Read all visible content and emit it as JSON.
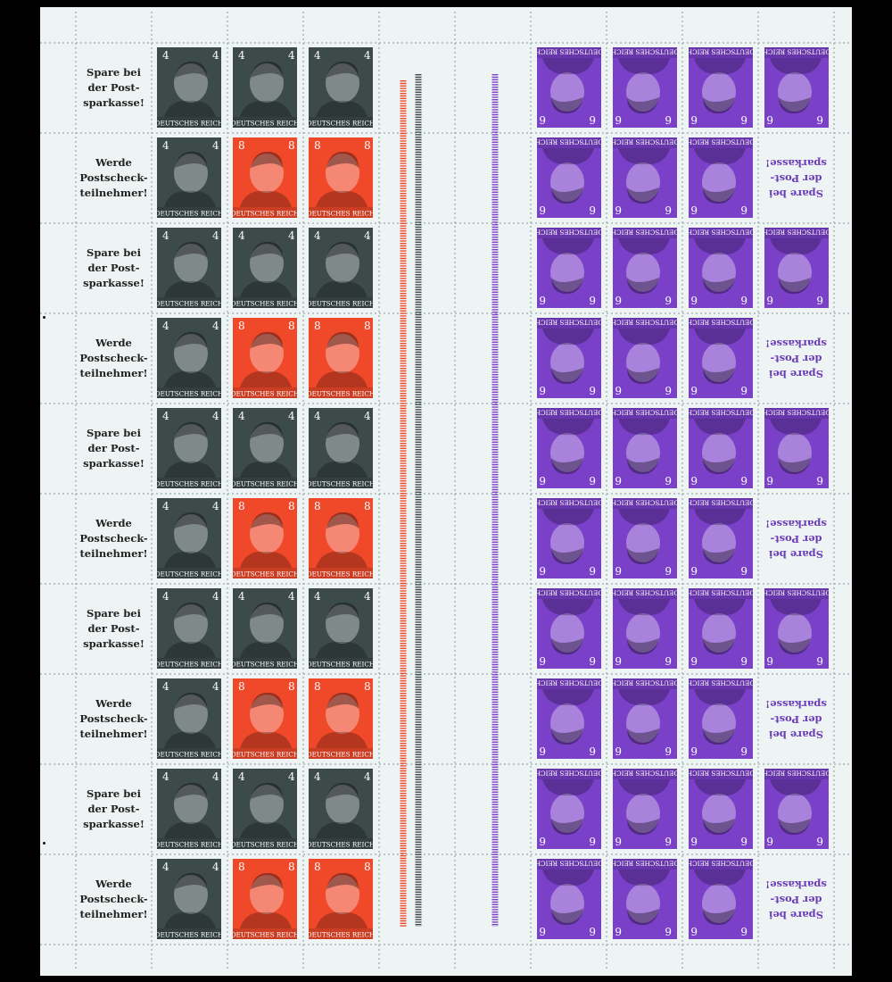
{
  "sheet": {
    "rows": [
      {
        "left_label": [
          "Spare bei",
          "der Post-",
          "sparkasse!"
        ],
        "left_values": [
          "4",
          "4",
          "4"
        ],
        "right_label": null
      },
      {
        "left_label": [
          "Werde",
          "Postscheck-",
          "teilnehmer!"
        ],
        "left_values": [
          "4",
          "8",
          "8"
        ],
        "right_label": [
          "Spare bei",
          "der Post-",
          "sparkasse!"
        ]
      },
      {
        "left_label": [
          "Spare bei",
          "der Post-",
          "sparkasse!"
        ],
        "left_values": [
          "4",
          "4",
          "4"
        ],
        "right_label": null
      },
      {
        "left_label": [
          "Werde",
          "Postscheck-",
          "teilnehmer!"
        ],
        "left_values": [
          "4",
          "8",
          "8"
        ],
        "right_label": [
          "Spare bei",
          "der Post-",
          "sparkasse!"
        ]
      },
      {
        "left_label": [
          "Spare bei",
          "der Post-",
          "sparkasse!"
        ],
        "left_values": [
          "4",
          "4",
          "4"
        ],
        "right_label": null
      },
      {
        "left_label": [
          "Werde",
          "Postscheck-",
          "teilnehmer!"
        ],
        "left_values": [
          "4",
          "8",
          "8"
        ],
        "right_label": [
          "Spare bei",
          "der Post-",
          "sparkasse!"
        ]
      },
      {
        "left_label": [
          "Spare bei",
          "der Post-",
          "sparkasse!"
        ],
        "left_values": [
          "4",
          "4",
          "4"
        ],
        "right_label": null
      },
      {
        "left_label": [
          "Werde",
          "Postscheck-",
          "teilnehmer!"
        ],
        "left_values": [
          "4",
          "8",
          "8"
        ],
        "right_label": [
          "Spare bei",
          "der Post-",
          "sparkasse!"
        ]
      },
      {
        "left_label": [
          "Spare bei",
          "der Post-",
          "sparkasse!"
        ],
        "left_values": [
          "4",
          "4",
          "4"
        ],
        "right_label": null
      },
      {
        "left_label": [
          "Werde",
          "Postscheck-",
          "teilnehmer!"
        ],
        "left_values": [
          "4",
          "8",
          "8"
        ],
        "right_label": [
          "Spare bei",
          "der Post-",
          "sparkasse!"
        ]
      }
    ],
    "right_value": "6",
    "stamp_caption": "DEUTSCHES REICH",
    "colors": {
      "value_4": "#3c4a4a",
      "value_8": "#f0492a",
      "value_6": "#7a40c8",
      "paper": "#eef3f3",
      "label_text": "#222222",
      "label_purple": "#6a3cb8"
    }
  }
}
